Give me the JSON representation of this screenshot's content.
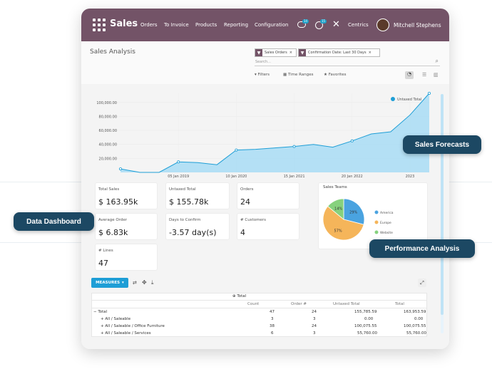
{
  "topbar": {
    "app_title": "Sales",
    "nav": [
      "Orders",
      "To Invoice",
      "Products",
      "Reporting",
      "Configuration"
    ],
    "badge_messages": "14",
    "badge_activities": "15",
    "company": "Centrics",
    "user": "Mitchell Stephens"
  },
  "page": {
    "title": "Sales Analysis",
    "facets": [
      "Sales Orders",
      "Confirmation Date: Last 30 Days"
    ],
    "search_placeholder": "Search...",
    "filters_label": "Filters",
    "timeranges_label": "Time Ranges",
    "favorites_label": "Favorites"
  },
  "chart_data": {
    "type": "area",
    "legend": "Untaxed Total",
    "y_ticks": [
      "100,000.00",
      "80,000.00",
      "60,000.00",
      "40,000.00",
      "20,000.00"
    ],
    "x_ticks": [
      "05 Jan 2019",
      "10 Jan 2020",
      "15 Jan 2021",
      "20 Jan 2022",
      "2023"
    ],
    "ylim": [
      0,
      113000
    ],
    "series": [
      {
        "name": "Untaxed Total",
        "values": [
          5000,
          0,
          0,
          15000,
          14000,
          11000,
          32000,
          33000,
          35000,
          37000,
          40000,
          36000,
          45000,
          55000,
          58000,
          82000,
          113000
        ]
      }
    ]
  },
  "kpis": [
    {
      "label": "Total Sales",
      "value": "$ 163.95k"
    },
    {
      "label": "Untaxed Total",
      "value": "$ 155.78k"
    },
    {
      "label": "Orders",
      "value": "24"
    },
    {
      "label": "Average Order",
      "value": "$ 6.83k"
    },
    {
      "label": "Days to Confirm",
      "value": "-3.57 day(s)"
    },
    {
      "label": "# Customers",
      "value": "4"
    },
    {
      "label": "# Lines",
      "value": "47"
    }
  ],
  "pie": {
    "title": "Sales Teams",
    "slices": [
      {
        "label": "America",
        "value": 29,
        "color": "#4aa3e0"
      },
      {
        "label": "Europe",
        "value": 57,
        "color": "#f5b55a"
      },
      {
        "label": "Website",
        "value": 14,
        "color": "#86d17d"
      }
    ],
    "slice_labels": [
      "29%",
      "57%",
      "14%"
    ]
  },
  "pivot": {
    "measures_label": "MEASURES",
    "header_group": "Total",
    "columns": [
      "Count",
      "Order #",
      "Untaxed Total",
      "Total"
    ],
    "rows": [
      {
        "label": "Total",
        "values": [
          "47",
          "24",
          "155,785.59",
          "163,953.59"
        ]
      },
      {
        "label": "All / Saleable",
        "values": [
          "3",
          "3",
          "0.00",
          "0.00"
        ]
      },
      {
        "label": "All / Saleable / Office Furniture",
        "values": [
          "38",
          "24",
          "100,075.55",
          "100,075.55"
        ]
      },
      {
        "label": "All / Saleable / Services",
        "values": [
          "6",
          "3",
          "55,760.00",
          "55,760.00"
        ]
      }
    ]
  },
  "callouts": {
    "forecast": "Sales Forecasts",
    "dashboard": "Data Dashboard",
    "performance": "Performance Analysis"
  },
  "colors": {
    "brand": "#735367",
    "accent": "#1ea0c8",
    "callout": "#1c4863",
    "area_fill": "#a8dcf5",
    "area_line": "#1e9ed6"
  }
}
